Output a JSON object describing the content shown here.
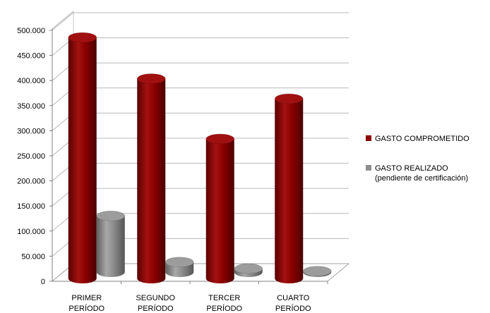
{
  "chart_data": {
    "type": "bar",
    "categories": [
      [
        "PRIMER",
        "PERÍODO"
      ],
      [
        "SEGUNDO",
        "PERÍODO"
      ],
      [
        "TERCER",
        "PERÍODO"
      ],
      [
        "CUARTO",
        "PERÍODO"
      ]
    ],
    "series": [
      {
        "name": "GASTO COMPROMETIDO",
        "values": [
          480000,
          398000,
          278000,
          358000
        ],
        "color": "#8b0000"
      },
      {
        "name": "GASTO REALIZADO",
        "name_line2": "(pendiente de certificación)",
        "values": [
          112000,
          20000,
          7000,
          2000
        ],
        "color": "#8c8c8c"
      }
    ],
    "yticks": [
      "0",
      "50.000",
      "100.000",
      "150.000",
      "200.000",
      "250.000",
      "300.000",
      "350.000",
      "400.000",
      "450.000",
      "500.000"
    ],
    "ylim": [
      0,
      500000
    ],
    "style": "3d-cylinder",
    "grid": true,
    "legend_position": "right"
  }
}
